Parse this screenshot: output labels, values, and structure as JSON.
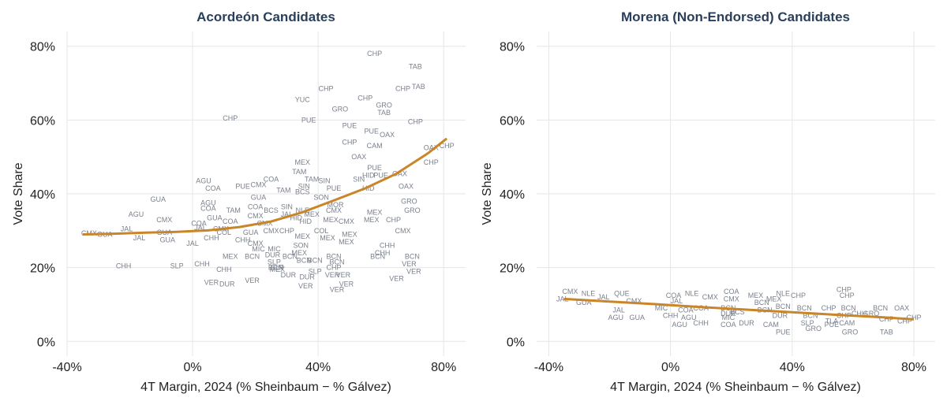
{
  "colors": {
    "trend": "#c98527",
    "label": "#7a808c",
    "title": "#2a3f5a",
    "grid": "#e6e6e6"
  },
  "chart_data": [
    {
      "type": "scatter",
      "title": "Acordeón Candidates",
      "xlabel": "4T Margin, 2024 (% Sheinbaum − % Gálvez)",
      "ylabel": "Vote Share",
      "xlim": [
        -40,
        87
      ],
      "ylim": [
        -4,
        84
      ],
      "xticks": [
        -40,
        0,
        40,
        80
      ],
      "xtick_labels": [
        "-40%",
        "0%",
        "40%",
        "80%"
      ],
      "yticks": [
        0,
        20,
        40,
        60,
        80
      ],
      "ytick_labels": [
        "0%",
        "20%",
        "40%",
        "60%",
        "80%"
      ],
      "grid": true,
      "trend": {
        "x": [
          -35,
          -25,
          -15,
          -5,
          5,
          15,
          25,
          35,
          45,
          55,
          65,
          75,
          81
        ],
        "y": [
          29,
          29.2,
          29.5,
          29.7,
          30.1,
          31,
          32.5,
          35,
          38.2,
          41.5,
          45.5,
          51,
          55
        ]
      },
      "points": [
        {
          "x": -33,
          "y": 29.3,
          "label": "CMX"
        },
        {
          "x": -28,
          "y": 29,
          "label": "GUA"
        },
        {
          "x": -21,
          "y": 30.5,
          "label": "JAL"
        },
        {
          "x": -17,
          "y": 28,
          "label": "JAL"
        },
        {
          "x": -18,
          "y": 34.5,
          "label": "AGU"
        },
        {
          "x": -11,
          "y": 38.5,
          "label": "GUA"
        },
        {
          "x": -9,
          "y": 33,
          "label": "CMX"
        },
        {
          "x": -9,
          "y": 29.5,
          "label": "GUA"
        },
        {
          "x": -8,
          "y": 27.5,
          "label": "GUA"
        },
        {
          "x": -22,
          "y": 20.5,
          "label": "CHH"
        },
        {
          "x": -5,
          "y": 20.5,
          "label": "SLP"
        },
        {
          "x": 0,
          "y": 26.5,
          "label": "JAL"
        },
        {
          "x": 2,
          "y": 32,
          "label": "COA"
        },
        {
          "x": 2.5,
          "y": 30.8,
          "label": "JAL"
        },
        {
          "x": 3.5,
          "y": 43.5,
          "label": "AGU"
        },
        {
          "x": 5,
          "y": 37.5,
          "label": "AGU"
        },
        {
          "x": 5,
          "y": 36,
          "label": "COA"
        },
        {
          "x": 7,
          "y": 33.5,
          "label": "GUA"
        },
        {
          "x": 6,
          "y": 28,
          "label": "CHH"
        },
        {
          "x": 10,
          "y": 29.5,
          "label": "COL"
        },
        {
          "x": 9,
          "y": 30.5,
          "label": "CMX"
        },
        {
          "x": 6.5,
          "y": 41.5,
          "label": "COA"
        },
        {
          "x": 13,
          "y": 35.5,
          "label": "TAM"
        },
        {
          "x": 12,
          "y": 32.5,
          "label": "COA"
        },
        {
          "x": 3,
          "y": 21,
          "label": "CHH"
        },
        {
          "x": 10,
          "y": 19.5,
          "label": "CHH"
        },
        {
          "x": 6,
          "y": 16,
          "label": "VER"
        },
        {
          "x": 11,
          "y": 15.5,
          "label": "DUR"
        },
        {
          "x": 12,
          "y": 60.5,
          "label": "CHP"
        },
        {
          "x": 16,
          "y": 42,
          "label": "PUE"
        },
        {
          "x": 21,
          "y": 42.5,
          "label": "CMX"
        },
        {
          "x": 25,
          "y": 44,
          "label": "COA"
        },
        {
          "x": 21,
          "y": 39,
          "label": "GUA"
        },
        {
          "x": 20,
          "y": 36.5,
          "label": "COA"
        },
        {
          "x": 20,
          "y": 34,
          "label": "CMX"
        },
        {
          "x": 25,
          "y": 35.5,
          "label": "BCS"
        },
        {
          "x": 23,
          "y": 32,
          "label": "CMX"
        },
        {
          "x": 18.5,
          "y": 29.5,
          "label": "GUA"
        },
        {
          "x": 25,
          "y": 30,
          "label": "CMX"
        },
        {
          "x": 16,
          "y": 27.5,
          "label": "CHH"
        },
        {
          "x": 20,
          "y": 26.5,
          "label": "CMX"
        },
        {
          "x": 12,
          "y": 23,
          "label": "MEX"
        },
        {
          "x": 19,
          "y": 23,
          "label": "BCN"
        },
        {
          "x": 21,
          "y": 25,
          "label": "MIC"
        },
        {
          "x": 26,
          "y": 25,
          "label": "MIC"
        },
        {
          "x": 25.5,
          "y": 23.5,
          "label": "DUR"
        },
        {
          "x": 26,
          "y": 21.5,
          "label": "SLP"
        },
        {
          "x": 26.5,
          "y": 20,
          "label": "BCN"
        },
        {
          "x": 31,
          "y": 23,
          "label": "BCN"
        },
        {
          "x": 27,
          "y": 20,
          "label": "SLP"
        },
        {
          "x": 27,
          "y": 19.5,
          "label": "MEX"
        },
        {
          "x": 19,
          "y": 16.5,
          "label": "VER"
        },
        {
          "x": 29,
          "y": 41,
          "label": "TAM"
        },
        {
          "x": 30,
          "y": 36.5,
          "label": "SIN"
        },
        {
          "x": 30,
          "y": 34.5,
          "label": "JAL"
        },
        {
          "x": 33,
          "y": 33.5,
          "label": "HID"
        },
        {
          "x": 30,
          "y": 30,
          "label": "CHP"
        },
        {
          "x": 35,
          "y": 48.5,
          "label": "MEX"
        },
        {
          "x": 34,
          "y": 46,
          "label": "TAM"
        },
        {
          "x": 35.5,
          "y": 42,
          "label": "SIN"
        },
        {
          "x": 35,
          "y": 40.5,
          "label": "BCS"
        },
        {
          "x": 38,
          "y": 44,
          "label": "TAM"
        },
        {
          "x": 35,
          "y": 35.5,
          "label": "NLE"
        },
        {
          "x": 38,
          "y": 34.5,
          "label": "MEX"
        },
        {
          "x": 36,
          "y": 32.5,
          "label": "HID"
        },
        {
          "x": 35,
          "y": 28.5,
          "label": "MEX"
        },
        {
          "x": 34.5,
          "y": 26,
          "label": "SON"
        },
        {
          "x": 34,
          "y": 24,
          "label": "MEX"
        },
        {
          "x": 35.5,
          "y": 22,
          "label": "BCN"
        },
        {
          "x": 39,
          "y": 22,
          "label": "BCN"
        },
        {
          "x": 30.5,
          "y": 18,
          "label": "DUR"
        },
        {
          "x": 36.5,
          "y": 17.5,
          "label": "DUR"
        },
        {
          "x": 39,
          "y": 19,
          "label": "SLP"
        },
        {
          "x": 36,
          "y": 15,
          "label": "VER"
        },
        {
          "x": 35,
          "y": 65.5,
          "label": "YUC"
        },
        {
          "x": 37,
          "y": 60,
          "label": "PUE"
        },
        {
          "x": 42.5,
          "y": 68.5,
          "label": "CHP"
        },
        {
          "x": 47,
          "y": 63,
          "label": "GRO"
        },
        {
          "x": 42,
          "y": 43.5,
          "label": "SIN"
        },
        {
          "x": 41,
          "y": 39,
          "label": "SON"
        },
        {
          "x": 45,
          "y": 41.5,
          "label": "PUE"
        },
        {
          "x": 45.5,
          "y": 37,
          "label": "MOR"
        },
        {
          "x": 45,
          "y": 35.5,
          "label": "CMX"
        },
        {
          "x": 44,
          "y": 33,
          "label": "MEX"
        },
        {
          "x": 41,
          "y": 30,
          "label": "COL"
        },
        {
          "x": 43,
          "y": 28,
          "label": "MEX"
        },
        {
          "x": 49,
          "y": 32.5,
          "label": "CMX"
        },
        {
          "x": 50,
          "y": 29,
          "label": "MEX"
        },
        {
          "x": 49,
          "y": 27,
          "label": "MEX"
        },
        {
          "x": 45,
          "y": 23,
          "label": "BCN"
        },
        {
          "x": 46,
          "y": 21.5,
          "label": "BCN"
        },
        {
          "x": 45,
          "y": 20,
          "label": "CHP"
        },
        {
          "x": 44.5,
          "y": 18,
          "label": "VER"
        },
        {
          "x": 48,
          "y": 18,
          "label": "VER"
        },
        {
          "x": 49,
          "y": 15.5,
          "label": "VER"
        },
        {
          "x": 46,
          "y": 14,
          "label": "VER"
        },
        {
          "x": 50,
          "y": 58.5,
          "label": "PUE"
        },
        {
          "x": 50,
          "y": 54,
          "label": "CHP"
        },
        {
          "x": 53,
          "y": 50,
          "label": "OAX"
        },
        {
          "x": 56,
          "y": 41.5,
          "label": "HID"
        },
        {
          "x": 53,
          "y": 44,
          "label": "SIN"
        },
        {
          "x": 56,
          "y": 45,
          "label": "HID"
        },
        {
          "x": 58,
          "y": 47,
          "label": "PUE"
        },
        {
          "x": 60,
          "y": 45,
          "label": "PUE"
        },
        {
          "x": 58,
          "y": 35,
          "label": "MEX"
        },
        {
          "x": 57,
          "y": 33,
          "label": "MEX"
        },
        {
          "x": 57,
          "y": 57,
          "label": "PUE"
        },
        {
          "x": 58,
          "y": 53,
          "label": "CAM"
        },
        {
          "x": 58,
          "y": 78,
          "label": "CHP"
        },
        {
          "x": 55,
          "y": 66,
          "label": "CHP"
        },
        {
          "x": 61,
          "y": 64,
          "label": "GRO"
        },
        {
          "x": 61,
          "y": 62,
          "label": "TAB"
        },
        {
          "x": 62,
          "y": 56,
          "label": "OAX"
        },
        {
          "x": 64,
          "y": 33,
          "label": "CHP"
        },
        {
          "x": 66,
          "y": 45.5,
          "label": "OAX"
        },
        {
          "x": 67,
          "y": 68.5,
          "label": "CHP"
        },
        {
          "x": 69,
          "y": 38,
          "label": "GRO"
        },
        {
          "x": 70,
          "y": 35.5,
          "label": "GRO"
        },
        {
          "x": 67,
          "y": 30,
          "label": "CMX"
        },
        {
          "x": 62,
          "y": 26,
          "label": "CHH"
        },
        {
          "x": 60.5,
          "y": 24,
          "label": "CHH"
        },
        {
          "x": 59,
          "y": 23,
          "label": "BCN"
        },
        {
          "x": 69,
          "y": 21,
          "label": "VER"
        },
        {
          "x": 70.5,
          "y": 19,
          "label": "VER"
        },
        {
          "x": 65,
          "y": 17,
          "label": "VER"
        },
        {
          "x": 70,
          "y": 23,
          "label": "BCN"
        },
        {
          "x": 68,
          "y": 42,
          "label": "OAX"
        },
        {
          "x": 71,
          "y": 74.5,
          "label": "TAB"
        },
        {
          "x": 72,
          "y": 69,
          "label": "TAB"
        },
        {
          "x": 71,
          "y": 59.5,
          "label": "CHP"
        },
        {
          "x": 76,
          "y": 52.5,
          "label": "OAX"
        },
        {
          "x": 76,
          "y": 48.5,
          "label": "CHP"
        },
        {
          "x": 81,
          "y": 53,
          "label": "CHP"
        }
      ]
    },
    {
      "type": "scatter",
      "title": "Morena (Non-Endorsed) Candidates",
      "xlabel": "4T Margin, 2024 (% Sheinbaum − % Gálvez)",
      "ylabel": "Vote Share",
      "xlim": [
        -44,
        87
      ],
      "ylim": [
        -4,
        84
      ],
      "xticks": [
        -40,
        0,
        40,
        80
      ],
      "xtick_labels": [
        "-40%",
        "0%",
        "40%",
        "80%"
      ],
      "yticks": [
        0,
        20,
        40,
        60,
        80
      ],
      "ytick_labels": [
        "0%",
        "20%",
        "40%",
        "60%",
        "80%"
      ],
      "grid": true,
      "trend": {
        "x": [
          -35,
          -20,
          -5,
          10,
          25,
          40,
          55,
          70,
          80
        ],
        "y": [
          11.5,
          10.8,
          10.1,
          9.3,
          8.6,
          7.9,
          7.2,
          6.5,
          6
        ]
      },
      "points": [
        {
          "x": -33,
          "y": 13.5,
          "label": "CMX"
        },
        {
          "x": -35.5,
          "y": 11.5,
          "label": "JAL"
        },
        {
          "x": -27,
          "y": 13,
          "label": "NLE"
        },
        {
          "x": -28.5,
          "y": 10.5,
          "label": "GUA"
        },
        {
          "x": -22,
          "y": 12,
          "label": "JAL"
        },
        {
          "x": -16,
          "y": 13,
          "label": "QUE"
        },
        {
          "x": -12,
          "y": 11,
          "label": "CMX"
        },
        {
          "x": -17,
          "y": 8.5,
          "label": "JAL"
        },
        {
          "x": -18,
          "y": 6.5,
          "label": "AGU"
        },
        {
          "x": -11,
          "y": 6.5,
          "label": "GUA"
        },
        {
          "x": -3,
          "y": 9,
          "label": "MIC"
        },
        {
          "x": 1,
          "y": 12.5,
          "label": "COA"
        },
        {
          "x": 2,
          "y": 11,
          "label": "JAL"
        },
        {
          "x": 7,
          "y": 13,
          "label": "NLE"
        },
        {
          "x": 5,
          "y": 8.5,
          "label": "COA"
        },
        {
          "x": 6,
          "y": 6.5,
          "label": "AGU"
        },
        {
          "x": 3,
          "y": 4.5,
          "label": "AGU"
        },
        {
          "x": 0,
          "y": 7,
          "label": "CHH"
        },
        {
          "x": 10,
          "y": 9,
          "label": "COA"
        },
        {
          "x": 13,
          "y": 12,
          "label": "CMX"
        },
        {
          "x": 10,
          "y": 5,
          "label": "CHH"
        },
        {
          "x": 20,
          "y": 13.5,
          "label": "COA"
        },
        {
          "x": 20,
          "y": 11.5,
          "label": "CMX"
        },
        {
          "x": 19,
          "y": 9,
          "label": "BCN"
        },
        {
          "x": 22,
          "y": 8,
          "label": "BCS"
        },
        {
          "x": 19,
          "y": 7.5,
          "label": "DUR"
        },
        {
          "x": 19,
          "y": 6.5,
          "label": "MIC"
        },
        {
          "x": 19,
          "y": 4.5,
          "label": "COA"
        },
        {
          "x": 25,
          "y": 5,
          "label": "DUR"
        },
        {
          "x": 28,
          "y": 12.5,
          "label": "MEX"
        },
        {
          "x": 30,
          "y": 10.5,
          "label": "BCN"
        },
        {
          "x": 31,
          "y": 8.5,
          "label": "BCN"
        },
        {
          "x": 34,
          "y": 11.5,
          "label": "MEX"
        },
        {
          "x": 37,
          "y": 13,
          "label": "NLE"
        },
        {
          "x": 37,
          "y": 9.5,
          "label": "BCN"
        },
        {
          "x": 36,
          "y": 7,
          "label": "DUR"
        },
        {
          "x": 33,
          "y": 4.5,
          "label": "CAM"
        },
        {
          "x": 42,
          "y": 12.5,
          "label": "CHP"
        },
        {
          "x": 44,
          "y": 9,
          "label": "BCN"
        },
        {
          "x": 46,
          "y": 7,
          "label": "BCN"
        },
        {
          "x": 45,
          "y": 5,
          "label": "SLP"
        },
        {
          "x": 37,
          "y": 2.5,
          "label": "PUE"
        },
        {
          "x": 47,
          "y": 3.5,
          "label": "GRO"
        },
        {
          "x": 52,
          "y": 9,
          "label": "CHP"
        },
        {
          "x": 53,
          "y": 5.5,
          "label": "TLA"
        },
        {
          "x": 53,
          "y": 4.5,
          "label": "PUE"
        },
        {
          "x": 57,
          "y": 14,
          "label": "CHP"
        },
        {
          "x": 58,
          "y": 12.5,
          "label": "CHP"
        },
        {
          "x": 58.5,
          "y": 9,
          "label": "BCN"
        },
        {
          "x": 57,
          "y": 7,
          "label": "CHP"
        },
        {
          "x": 62,
          "y": 7.5,
          "label": "CHH"
        },
        {
          "x": 58,
          "y": 5,
          "label": "CAM"
        },
        {
          "x": 66,
          "y": 7.5,
          "label": "GRO"
        },
        {
          "x": 59,
          "y": 2.5,
          "label": "GRO"
        },
        {
          "x": 69,
          "y": 9,
          "label": "BCN"
        },
        {
          "x": 71,
          "y": 6,
          "label": "CHP"
        },
        {
          "x": 76,
          "y": 9,
          "label": "OAX"
        },
        {
          "x": 77,
          "y": 5.5,
          "label": "CHP"
        },
        {
          "x": 71,
          "y": 2.5,
          "label": "TAB"
        },
        {
          "x": 80,
          "y": 6.5,
          "label": "CHP"
        }
      ]
    }
  ]
}
